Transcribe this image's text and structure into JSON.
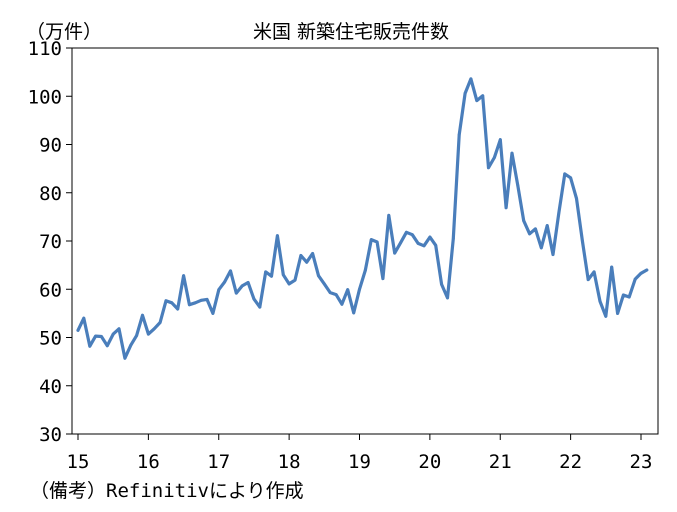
{
  "chart_data": {
    "type": "line",
    "title": "米国 新築住宅販売件数",
    "unit_label": "（万件）",
    "source_note": "（備考）Refinitivにより作成",
    "ylim": [
      30,
      110
    ],
    "y_ticks": [
      "110",
      "100",
      "90",
      "80",
      "70",
      "60",
      "50",
      "40",
      "30"
    ],
    "x_tick_labels": [
      "15",
      "16",
      "17",
      "18",
      "19",
      "20",
      "21",
      "22",
      "23"
    ],
    "x_tick_values": [
      2015,
      2016,
      2017,
      2018,
      2019,
      2020,
      2021,
      2022,
      2023
    ],
    "xlim": [
      2015,
      2023.2
    ],
    "grid": false,
    "legend": "none",
    "line_color": "#4a7ebb",
    "series": [
      {
        "values": [
          [
            2015.0,
            51.5
          ],
          [
            2015.083,
            54.0
          ],
          [
            2015.167,
            48.2
          ],
          [
            2015.25,
            50.3
          ],
          [
            2015.333,
            50.2
          ],
          [
            2015.417,
            48.3
          ],
          [
            2015.5,
            50.7
          ],
          [
            2015.583,
            51.8
          ],
          [
            2015.667,
            45.7
          ],
          [
            2015.75,
            48.4
          ],
          [
            2015.833,
            50.4
          ],
          [
            2015.917,
            54.6
          ],
          [
            2016.0,
            50.7
          ],
          [
            2016.083,
            51.8
          ],
          [
            2016.167,
            53.1
          ],
          [
            2016.25,
            57.6
          ],
          [
            2016.333,
            57.2
          ],
          [
            2016.417,
            55.9
          ],
          [
            2016.5,
            62.8
          ],
          [
            2016.583,
            56.8
          ],
          [
            2016.667,
            57.2
          ],
          [
            2016.75,
            57.7
          ],
          [
            2016.833,
            57.9
          ],
          [
            2016.917,
            55.0
          ],
          [
            2017.0,
            59.9
          ],
          [
            2017.083,
            61.5
          ],
          [
            2017.167,
            63.8
          ],
          [
            2017.25,
            59.2
          ],
          [
            2017.333,
            60.7
          ],
          [
            2017.417,
            61.4
          ],
          [
            2017.5,
            58.0
          ],
          [
            2017.583,
            56.3
          ],
          [
            2017.667,
            63.6
          ],
          [
            2017.75,
            62.7
          ],
          [
            2017.833,
            71.1
          ],
          [
            2017.917,
            63.0
          ],
          [
            2018.0,
            61.1
          ],
          [
            2018.083,
            61.9
          ],
          [
            2018.167,
            67.0
          ],
          [
            2018.25,
            65.6
          ],
          [
            2018.333,
            67.4
          ],
          [
            2018.417,
            62.8
          ],
          [
            2018.5,
            61.1
          ],
          [
            2018.583,
            59.3
          ],
          [
            2018.667,
            58.9
          ],
          [
            2018.75,
            56.9
          ],
          [
            2018.833,
            59.9
          ],
          [
            2018.917,
            55.1
          ],
          [
            2019.0,
            60.0
          ],
          [
            2019.083,
            63.9
          ],
          [
            2019.167,
            70.3
          ],
          [
            2019.25,
            69.8
          ],
          [
            2019.333,
            62.2
          ],
          [
            2019.417,
            75.3
          ],
          [
            2019.5,
            67.5
          ],
          [
            2019.583,
            69.6
          ],
          [
            2019.667,
            71.8
          ],
          [
            2019.75,
            71.3
          ],
          [
            2019.833,
            69.5
          ],
          [
            2019.917,
            69.0
          ],
          [
            2020.0,
            70.8
          ],
          [
            2020.083,
            69.1
          ],
          [
            2020.167,
            61.0
          ],
          [
            2020.25,
            58.2
          ],
          [
            2020.333,
            70.5
          ],
          [
            2020.417,
            92.0
          ],
          [
            2020.5,
            100.6
          ],
          [
            2020.583,
            103.6
          ],
          [
            2020.667,
            99.1
          ],
          [
            2020.75,
            100.1
          ],
          [
            2020.833,
            85.2
          ],
          [
            2020.917,
            87.3
          ],
          [
            2021.0,
            91.0
          ],
          [
            2021.083,
            76.9
          ],
          [
            2021.167,
            88.2
          ],
          [
            2021.25,
            81.5
          ],
          [
            2021.333,
            74.2
          ],
          [
            2021.417,
            71.5
          ],
          [
            2021.5,
            72.5
          ],
          [
            2021.583,
            68.6
          ],
          [
            2021.667,
            73.2
          ],
          [
            2021.75,
            67.2
          ],
          [
            2021.833,
            75.9
          ],
          [
            2021.917,
            83.9
          ],
          [
            2022.0,
            83.1
          ],
          [
            2022.083,
            78.8
          ],
          [
            2022.167,
            70.0
          ],
          [
            2022.25,
            62.0
          ],
          [
            2022.333,
            63.6
          ],
          [
            2022.417,
            57.5
          ],
          [
            2022.5,
            54.4
          ],
          [
            2022.583,
            64.6
          ],
          [
            2022.667,
            55.0
          ],
          [
            2022.75,
            58.8
          ],
          [
            2022.833,
            58.4
          ],
          [
            2022.917,
            62.1
          ],
          [
            2023.0,
            63.3
          ],
          [
            2023.083,
            64.0
          ]
        ]
      }
    ]
  }
}
